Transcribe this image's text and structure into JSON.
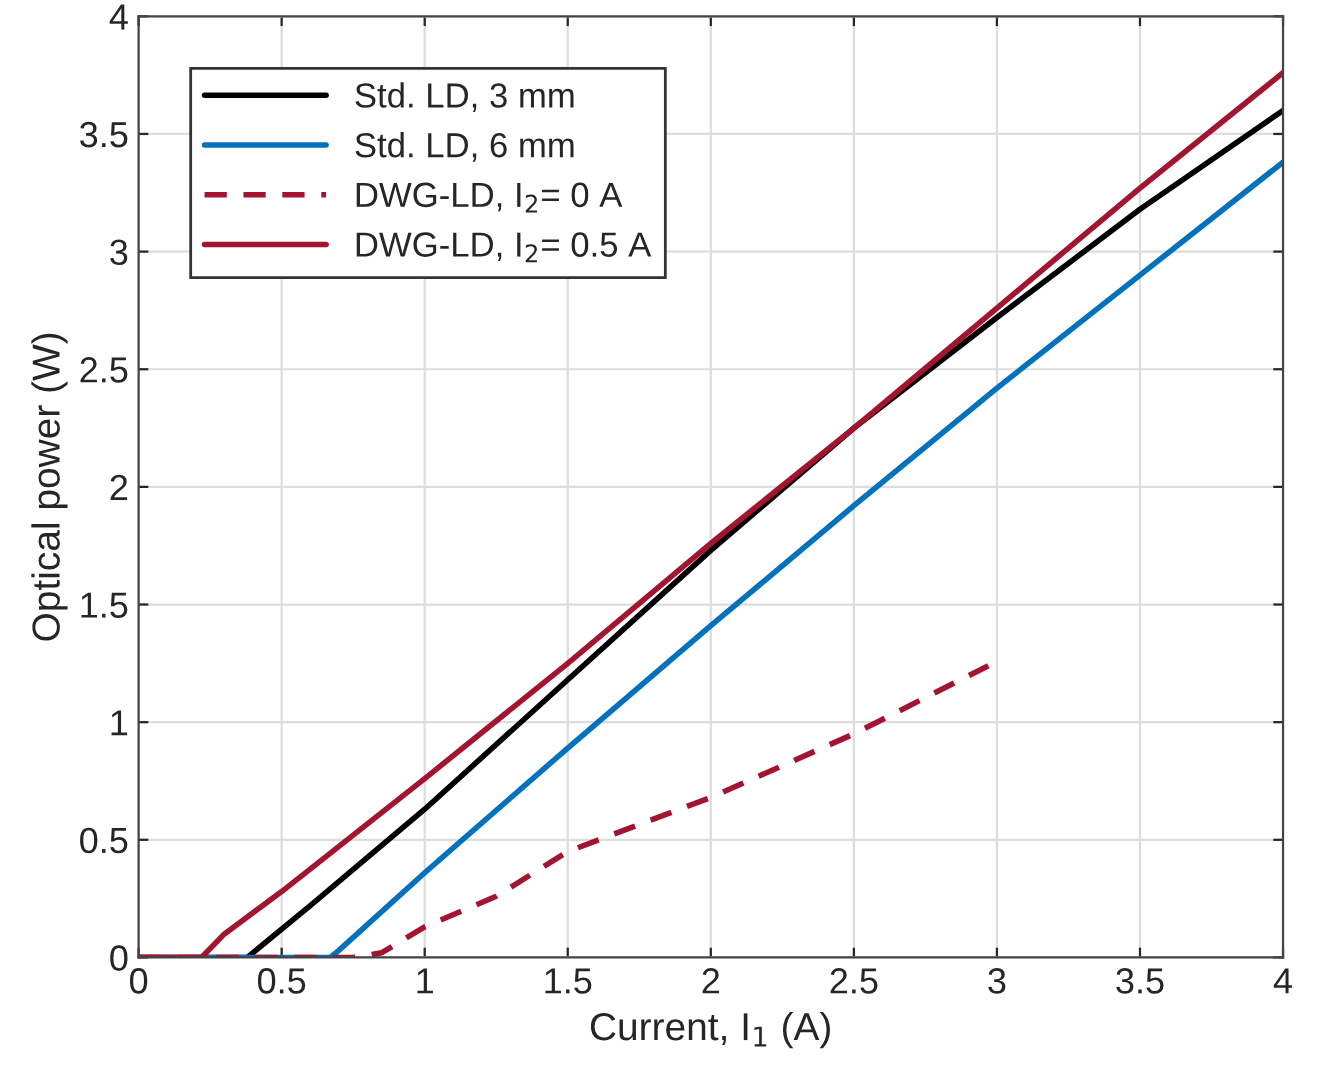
{
  "chart_data": {
    "type": "line",
    "xlabel": "Current, I$_{1}$ (A)",
    "ylabel": "Optical power (W)",
    "xlim": [
      0,
      4
    ],
    "ylim": [
      0,
      4
    ],
    "xticks": [
      0,
      0.5,
      1,
      1.5,
      2,
      2.5,
      3,
      3.5,
      4
    ],
    "yticks": [
      0,
      0.5,
      1,
      1.5,
      2,
      2.5,
      3,
      3.5,
      4
    ],
    "grid": true,
    "legend": "top left",
    "series": [
      {
        "name": "Std. LD, 3 mm",
        "color": "#000000",
        "line_style": "solid",
        "x": [
          0,
          0.38,
          0.6,
          1,
          1.5,
          2,
          2.5,
          3,
          3.5,
          4
        ],
        "values": [
          0,
          0,
          0.22,
          0.63,
          1.18,
          1.73,
          2.25,
          2.72,
          3.18,
          3.6
        ]
      },
      {
        "name": "Std. LD, 6 mm",
        "color": "#0072bd",
        "line_style": "solid",
        "x": [
          0,
          0.67,
          0.7,
          1,
          1.5,
          2,
          2.5,
          3,
          3.5,
          4
        ],
        "values": [
          0,
          0,
          0.03,
          0.36,
          0.89,
          1.41,
          1.92,
          2.42,
          2.9,
          3.38
        ]
      },
      {
        "name": "DWG-LD, I$_{2}$= 0 A",
        "color": "#a2142f",
        "line_style": "dashed",
        "x": [
          0,
          0.75,
          0.85,
          1,
          1.25,
          1.5,
          2,
          2.5,
          2.97
        ],
        "values": [
          0,
          0,
          0.02,
          0.13,
          0.26,
          0.45,
          0.68,
          0.95,
          1.24
        ]
      },
      {
        "name": "DWG-LD, I$_{2}$= 0.5 A",
        "color": "#a2142f",
        "line_style": "solid",
        "x": [
          0,
          0.22,
          0.3,
          0.5,
          1,
          1.5,
          2,
          2.5,
          3,
          3.5,
          4
        ],
        "values": [
          0,
          0,
          0.1,
          0.28,
          0.76,
          1.25,
          1.76,
          2.25,
          2.76,
          3.27,
          3.76
        ]
      }
    ]
  }
}
